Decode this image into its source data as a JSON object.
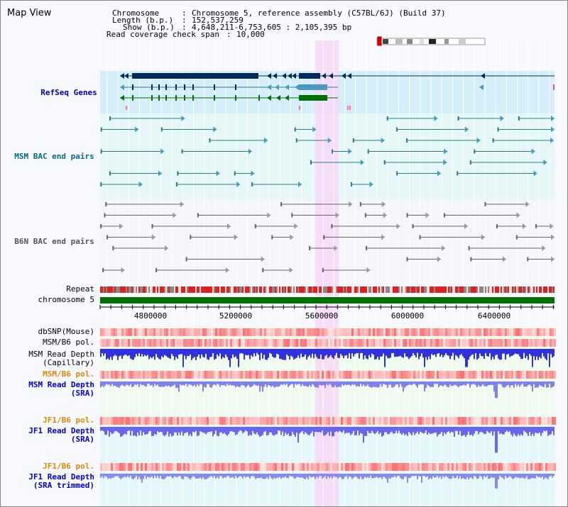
{
  "title": "Map View",
  "info": {
    "chromosome_label": "Chromosome",
    "chromosome_value": "Chromosome 5, reference assembly (C57BL/6J) (Build 37)",
    "length_label": "Length (b.p.)",
    "length_value": "152,537,259",
    "show_label": "Show (b.p.)",
    "show_value": "4,648,211-6,753,605 : 2,105,395 bp",
    "span_label": "Read coverage check span",
    "span_value": "10,000"
  },
  "tracks": {
    "refseq": "RefSeq Genes",
    "msm_bac": "MSM BAC end pairs",
    "b6n_bac": "B6N BAC end pairs",
    "repeat": "Repeat",
    "chromosome": "chromosome 5",
    "dbsnp": "dbSNP(Mouse)",
    "msm_pol": "MSM/B6 pol.",
    "msm_depth_cap": "MSM Read Depth\n(Capillary)",
    "msm_pol2": "MSM/B6 pol.",
    "msm_depth_sra": "MSM Read Depth\n(SRA)",
    "jf1_pol": "JF1/B6 pol.",
    "jf1_depth": "JF1 Read Depth\n(SRA)",
    "jf1_pol2": "JF1/B6 pol.",
    "jf1_depth_trim": "JF1 Read Depth\n(SRA trimmed)"
  },
  "axis": {
    "ticks": [
      "4800000",
      "5200000",
      "5600000",
      "6000000",
      "6400000"
    ]
  },
  "colors": {
    "refseq_label": "#0000aa",
    "bac_label": "#006a80",
    "b6n_label": "#555555",
    "pol_label_orange": "#dd8800",
    "depth_label_blue": "#0000cc",
    "highlight": "#f8d8f8",
    "chromosome_bar": "#007000"
  }
}
